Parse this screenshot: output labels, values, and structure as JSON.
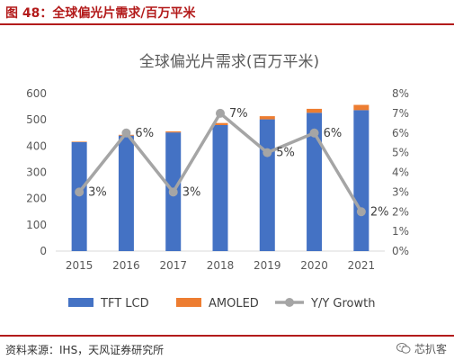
{
  "figure": {
    "label": "图 48：全球偏光片需求/百万平米",
    "source": "资料来源：IHS，天风证券研究所",
    "watermark": "芯扒客"
  },
  "colors": {
    "tft_lcd": "#4472c4",
    "amoled": "#ed7d31",
    "growth": "#a5a5a5",
    "accent": "#b31b1b"
  },
  "chart_data": {
    "type": "bar",
    "title": "全球偏光片需求(百万平米)",
    "categories": [
      "2015",
      "2016",
      "2017",
      "2018",
      "2019",
      "2020",
      "2021"
    ],
    "stacked": true,
    "series": [
      {
        "name": "TFT LCD",
        "type": "bar",
        "values": [
          415,
          440,
          452,
          480,
          502,
          527,
          537
        ]
      },
      {
        "name": "AMOLED",
        "type": "bar",
        "values": [
          2,
          3,
          4,
          8,
          12,
          15,
          20
        ]
      },
      {
        "name": "Y/Y Growth",
        "type": "line",
        "axis": "right",
        "values": [
          3,
          6,
          3,
          7,
          5,
          6,
          2
        ]
      }
    ],
    "data_labels": [
      "3%",
      "6%",
      "3%",
      "7%",
      "5%",
      "6%",
      "2%"
    ],
    "y_left": {
      "min": 0,
      "max": 600,
      "ticks": [
        "0",
        "100",
        "200",
        "300",
        "400",
        "500",
        "600"
      ]
    },
    "y_right": {
      "min": 0,
      "max": 8,
      "ticks": [
        "0%",
        "1%",
        "2%",
        "3%",
        "4%",
        "5%",
        "6%",
        "7%",
        "8%"
      ]
    },
    "legend": {
      "placement": "bottom",
      "entries": [
        "TFT LCD",
        "AMOLED",
        "Y/Y Growth"
      ]
    },
    "grid": false
  }
}
